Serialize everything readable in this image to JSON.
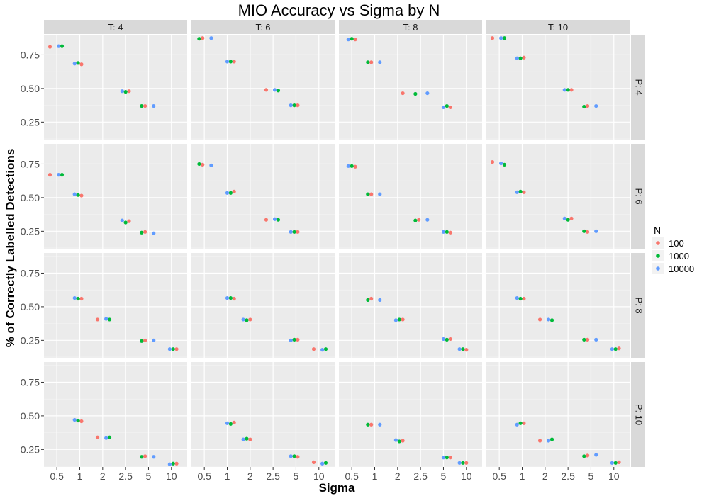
{
  "chart_data": {
    "type": "scatter",
    "title": "MIO Accuracy vs Sigma by N",
    "xlabel": "Sigma",
    "ylabel": "% of Correctly Labelled Detections",
    "x_scale": "categorical-sigma (jittered)",
    "x_ticks": [
      "0.5",
      "1",
      "2",
      "2.5",
      "5",
      "10"
    ],
    "y_ticks": [
      "0.25",
      "0.50",
      "0.75"
    ],
    "ylim": [
      0.12,
      0.9
    ],
    "facet_cols": [
      "T: 4",
      "T: 6",
      "T: 8",
      "T: 10"
    ],
    "facet_rows": [
      "P: 4",
      "P: 6",
      "P: 8",
      "P: 10"
    ],
    "legend": {
      "title": "N",
      "placement": "right",
      "entries": [
        {
          "name": "100",
          "color": "#F8766D"
        },
        {
          "name": "1000",
          "color": "#00BA38"
        },
        {
          "name": "10000",
          "color": "#619CFF"
        }
      ]
    },
    "series": [
      {
        "name": "100",
        "color": "#F8766D",
        "points": [
          [
            0,
            0,
            0.5,
            0.81
          ],
          [
            0,
            0,
            1,
            0.68
          ],
          [
            0,
            0,
            2.5,
            0.48
          ],
          [
            0,
            0,
            5,
            0.37
          ],
          [
            0,
            1,
            0.5,
            0.875
          ],
          [
            0,
            1,
            1,
            0.7
          ],
          [
            0,
            1,
            2.5,
            0.49
          ],
          [
            0,
            1,
            5,
            0.375
          ],
          [
            0,
            2,
            0.5,
            0.865
          ],
          [
            0,
            2,
            1,
            0.695
          ],
          [
            0,
            2,
            2,
            0.465
          ],
          [
            0,
            2,
            5,
            0.36
          ],
          [
            0,
            3,
            0.5,
            0.875
          ],
          [
            0,
            3,
            1,
            0.73
          ],
          [
            0,
            3,
            2.5,
            0.49
          ],
          [
            0,
            3,
            5,
            0.37
          ],
          [
            1,
            0,
            0.5,
            0.67
          ],
          [
            1,
            0,
            1,
            0.515
          ],
          [
            1,
            0,
            2.5,
            0.325
          ],
          [
            1,
            0,
            5,
            0.245
          ],
          [
            1,
            1,
            0.5,
            0.745
          ],
          [
            1,
            1,
            1,
            0.545
          ],
          [
            1,
            1,
            2.5,
            0.335
          ],
          [
            1,
            1,
            5,
            0.245
          ],
          [
            1,
            2,
            0.5,
            0.73
          ],
          [
            1,
            2,
            1,
            0.525
          ],
          [
            1,
            2,
            2.5,
            0.335
          ],
          [
            1,
            2,
            5,
            0.24
          ],
          [
            1,
            3,
            0.5,
            0.765
          ],
          [
            1,
            3,
            1,
            0.54
          ],
          [
            1,
            3,
            2.5,
            0.345
          ],
          [
            1,
            3,
            5,
            0.245
          ],
          [
            2,
            0,
            1,
            0.56
          ],
          [
            2,
            0,
            2,
            0.405
          ],
          [
            2,
            0,
            5,
            0.25
          ],
          [
            2,
            0,
            10,
            0.185
          ],
          [
            2,
            1,
            1,
            0.56
          ],
          [
            2,
            1,
            2,
            0.405
          ],
          [
            2,
            1,
            5,
            0.255
          ],
          [
            2,
            1,
            10,
            0.185
          ],
          [
            2,
            2,
            1,
            0.56
          ],
          [
            2,
            2,
            2,
            0.405
          ],
          [
            2,
            2,
            5,
            0.26
          ],
          [
            2,
            2,
            10,
            0.18
          ],
          [
            2,
            3,
            1,
            0.56
          ],
          [
            2,
            3,
            2,
            0.405
          ],
          [
            2,
            3,
            5,
            0.255
          ],
          [
            2,
            3,
            10,
            0.19
          ],
          [
            3,
            0,
            1,
            0.46
          ],
          [
            3,
            0,
            2,
            0.34
          ],
          [
            3,
            0,
            5,
            0.2
          ],
          [
            3,
            0,
            10,
            0.145
          ],
          [
            3,
            1,
            1,
            0.45
          ],
          [
            3,
            1,
            2,
            0.325
          ],
          [
            3,
            1,
            5,
            0.195
          ],
          [
            3,
            1,
            10,
            0.155
          ],
          [
            3,
            2,
            1,
            0.435
          ],
          [
            3,
            2,
            2,
            0.315
          ],
          [
            3,
            2,
            5,
            0.19
          ],
          [
            3,
            2,
            10,
            0.15
          ],
          [
            3,
            3,
            1,
            0.445
          ],
          [
            3,
            3,
            2,
            0.315
          ],
          [
            3,
            3,
            5,
            0.205
          ],
          [
            3,
            3,
            10,
            0.155
          ]
        ]
      },
      {
        "name": "1000",
        "color": "#00BA38",
        "points": [
          [
            0,
            0,
            0.5,
            0.815
          ],
          [
            0,
            0,
            1,
            0.69
          ],
          [
            0,
            0,
            2.5,
            0.475
          ],
          [
            0,
            0,
            5,
            0.37
          ],
          [
            0,
            1,
            0.5,
            0.87
          ],
          [
            0,
            1,
            1,
            0.7
          ],
          [
            0,
            1,
            2.5,
            0.485
          ],
          [
            0,
            1,
            5,
            0.375
          ],
          [
            0,
            2,
            0.5,
            0.87
          ],
          [
            0,
            2,
            1,
            0.695
          ],
          [
            0,
            2,
            2.5,
            0.46
          ],
          [
            0,
            2,
            5,
            0.37
          ],
          [
            0,
            3,
            0.5,
            0.875
          ],
          [
            0,
            3,
            1,
            0.725
          ],
          [
            0,
            3,
            2.5,
            0.49
          ],
          [
            0,
            3,
            5,
            0.365
          ],
          [
            1,
            0,
            0.5,
            0.67
          ],
          [
            1,
            0,
            1,
            0.52
          ],
          [
            1,
            0,
            2.5,
            0.315
          ],
          [
            1,
            0,
            5,
            0.24
          ],
          [
            1,
            1,
            0.5,
            0.75
          ],
          [
            1,
            1,
            1,
            0.535
          ],
          [
            1,
            1,
            2.5,
            0.335
          ],
          [
            1,
            1,
            5,
            0.245
          ],
          [
            1,
            2,
            0.5,
            0.735
          ],
          [
            1,
            2,
            1,
            0.525
          ],
          [
            1,
            2,
            2.5,
            0.33
          ],
          [
            1,
            2,
            5,
            0.245
          ],
          [
            1,
            3,
            0.5,
            0.745
          ],
          [
            1,
            3,
            1,
            0.545
          ],
          [
            1,
            3,
            2.5,
            0.335
          ],
          [
            1,
            3,
            5,
            0.25
          ],
          [
            2,
            0,
            1,
            0.56
          ],
          [
            2,
            0,
            2,
            0.405
          ],
          [
            2,
            0,
            5,
            0.245
          ],
          [
            2,
            0,
            10,
            0.185
          ],
          [
            2,
            1,
            1,
            0.565
          ],
          [
            2,
            1,
            2,
            0.4
          ],
          [
            2,
            1,
            5,
            0.255
          ],
          [
            2,
            1,
            10,
            0.185
          ],
          [
            2,
            2,
            1,
            0.55
          ],
          [
            2,
            2,
            2,
            0.405
          ],
          [
            2,
            2,
            5,
            0.255
          ],
          [
            2,
            2,
            10,
            0.185
          ],
          [
            2,
            3,
            1,
            0.56
          ],
          [
            2,
            3,
            2,
            0.4
          ],
          [
            2,
            3,
            5,
            0.255
          ],
          [
            2,
            3,
            10,
            0.185
          ],
          [
            3,
            0,
            1,
            0.465
          ],
          [
            3,
            0,
            2,
            0.34
          ],
          [
            3,
            0,
            5,
            0.195
          ],
          [
            3,
            0,
            10,
            0.145
          ],
          [
            3,
            1,
            1,
            0.44
          ],
          [
            3,
            1,
            2,
            0.33
          ],
          [
            3,
            1,
            5,
            0.2
          ],
          [
            3,
            1,
            10,
            0.15
          ],
          [
            3,
            2,
            1,
            0.435
          ],
          [
            3,
            2,
            2,
            0.31
          ],
          [
            3,
            2,
            5,
            0.19
          ],
          [
            3,
            2,
            10,
            0.15
          ],
          [
            3,
            3,
            1,
            0.445
          ],
          [
            3,
            3,
            2,
            0.325
          ],
          [
            3,
            3,
            5,
            0.2
          ],
          [
            3,
            3,
            10,
            0.15
          ]
        ]
      },
      {
        "name": "10000",
        "color": "#619CFF",
        "points": [
          [
            0,
            0,
            0.5,
            0.815
          ],
          [
            0,
            0,
            1,
            0.685
          ],
          [
            0,
            0,
            2.5,
            0.48
          ],
          [
            0,
            0,
            5,
            0.37
          ],
          [
            0,
            1,
            0.5,
            0.875
          ],
          [
            0,
            1,
            1,
            0.7
          ],
          [
            0,
            1,
            2.5,
            0.49
          ],
          [
            0,
            1,
            5,
            0.375
          ],
          [
            0,
            2,
            0.5,
            0.865
          ],
          [
            0,
            2,
            1,
            0.695
          ],
          [
            0,
            2,
            2.5,
            0.465
          ],
          [
            0,
            2,
            5,
            0.36
          ],
          [
            0,
            3,
            0.5,
            0.875
          ],
          [
            0,
            3,
            1,
            0.725
          ],
          [
            0,
            3,
            2.5,
            0.49
          ],
          [
            0,
            3,
            5,
            0.37
          ],
          [
            1,
            0,
            0.5,
            0.67
          ],
          [
            1,
            0,
            1,
            0.525
          ],
          [
            1,
            0,
            2.5,
            0.33
          ],
          [
            1,
            0,
            5,
            0.235
          ],
          [
            1,
            1,
            0.5,
            0.74
          ],
          [
            1,
            1,
            1,
            0.535
          ],
          [
            1,
            1,
            2.5,
            0.34
          ],
          [
            1,
            1,
            5,
            0.245
          ],
          [
            1,
            2,
            0.5,
            0.735
          ],
          [
            1,
            2,
            1,
            0.525
          ],
          [
            1,
            2,
            2.5,
            0.335
          ],
          [
            1,
            2,
            5,
            0.245
          ],
          [
            1,
            3,
            0.5,
            0.755
          ],
          [
            1,
            3,
            1,
            0.54
          ],
          [
            1,
            3,
            2.5,
            0.345
          ],
          [
            1,
            3,
            5,
            0.25
          ],
          [
            2,
            0,
            1,
            0.565
          ],
          [
            2,
            0,
            2,
            0.41
          ],
          [
            2,
            0,
            5,
            0.25
          ],
          [
            2,
            0,
            10,
            0.185
          ],
          [
            2,
            1,
            1,
            0.565
          ],
          [
            2,
            1,
            2,
            0.405
          ],
          [
            2,
            1,
            5,
            0.25
          ],
          [
            2,
            1,
            10,
            0.18
          ],
          [
            2,
            2,
            1,
            0.55
          ],
          [
            2,
            2,
            2,
            0.4
          ],
          [
            2,
            2,
            5,
            0.26
          ],
          [
            2,
            2,
            10,
            0.185
          ],
          [
            2,
            3,
            1,
            0.565
          ],
          [
            2,
            3,
            2,
            0.405
          ],
          [
            2,
            3,
            5,
            0.255
          ],
          [
            2,
            3,
            10,
            0.185
          ],
          [
            3,
            0,
            1,
            0.47
          ],
          [
            3,
            0,
            2,
            0.335
          ],
          [
            3,
            0,
            5,
            0.195
          ],
          [
            3,
            0,
            10,
            0.14
          ],
          [
            3,
            1,
            1,
            0.445
          ],
          [
            3,
            1,
            2,
            0.325
          ],
          [
            3,
            1,
            5,
            0.2
          ],
          [
            3,
            1,
            10,
            0.145
          ],
          [
            3,
            2,
            1,
            0.435
          ],
          [
            3,
            2,
            2,
            0.32
          ],
          [
            3,
            2,
            5,
            0.19
          ],
          [
            3,
            2,
            10,
            0.15
          ],
          [
            3,
            3,
            1,
            0.435
          ],
          [
            3,
            3,
            2,
            0.315
          ],
          [
            3,
            3,
            5,
            0.21
          ],
          [
            3,
            3,
            10,
            0.15
          ]
        ]
      }
    ]
  }
}
